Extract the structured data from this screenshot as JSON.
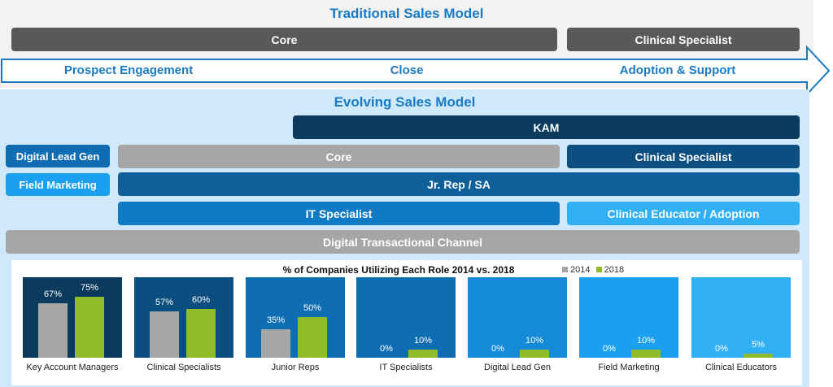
{
  "traditional": {
    "title": "Traditional Sales Model",
    "core": "Core",
    "clinical_specialist": "Clinical Specialist",
    "stages": [
      "Prospect Engagement",
      "Close",
      "Adoption & Support"
    ]
  },
  "evolving": {
    "title": "Evolving Sales Model",
    "kam": "KAM",
    "digital_lead_gen": "Digital Lead Gen",
    "field_marketing": "Field Marketing",
    "core": "Core",
    "clinical_specialist": "Clinical Specialist",
    "jr_rep": "Jr. Rep / SA",
    "it_specialist": "IT Specialist",
    "clinical_educator": "Clinical Educator / Adoption",
    "digital_channel": "Digital Transactional Channel"
  },
  "colors": {
    "dark_gray": "#595959",
    "gray": "#a6a6a6",
    "navy": "#0a3a5c",
    "dark_blue": "#0b4f80",
    "mid_blue": "#0f6db3",
    "blue": "#148ad8",
    "light_blue": "#31b0f5",
    "bg_light": "#cfe9fb",
    "green_2018": "#8fbc2b"
  },
  "chart_data": {
    "type": "bar",
    "title": "% of Companies Utilizing Each Role 2014 vs. 2018",
    "legend_position": "top-right",
    "categories": [
      "Key Account Managers",
      "Clinical Specialists",
      "Junior Reps",
      "IT Specialists",
      "Digital Lead Gen",
      "Field Marketing",
      "Clinical Educators"
    ],
    "series": [
      {
        "name": "2014",
        "values": [
          67,
          57,
          35,
          0,
          0,
          0,
          0
        ],
        "color": "#a6a6a6"
      },
      {
        "name": "2018",
        "values": [
          75,
          60,
          50,
          10,
          10,
          10,
          5
        ],
        "color": "#8fbc2b"
      }
    ],
    "labels_2014": [
      "67%",
      "57%",
      "35%",
      "0%",
      "0%",
      "0%",
      "0%"
    ],
    "labels_2018": [
      "75%",
      "60%",
      "50%",
      "10%",
      "10%",
      "10%",
      "5%"
    ],
    "panel_colors": [
      "#0a3a5c",
      "#0b4f80",
      "#0f6db3",
      "#0f6db3",
      "#148ad8",
      "#1aa0ee",
      "#31b0f5"
    ],
    "ylim": [
      0,
      100
    ]
  }
}
